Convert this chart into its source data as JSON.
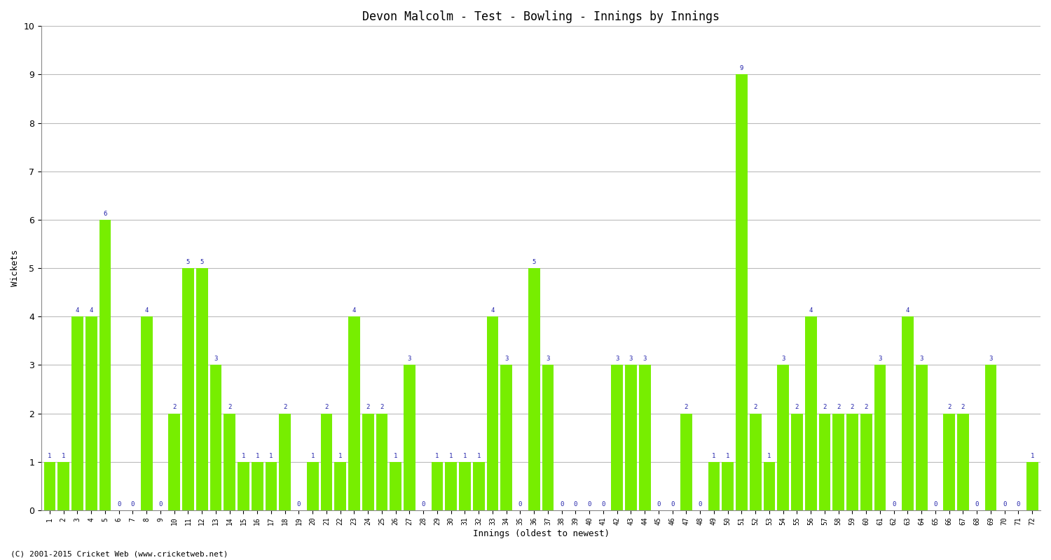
{
  "title": "Devon Malcolm - Test - Bowling - Innings by Innings",
  "xlabel": "Innings (oldest to newest)",
  "ylabel": "Wickets",
  "bar_color": "#77ee00",
  "label_color": "#2222aa",
  "background_color": "#ffffff",
  "grid_color": "#bbbbbb",
  "ylim": [
    0,
    10
  ],
  "yticks": [
    0,
    1,
    2,
    3,
    4,
    5,
    6,
    7,
    8,
    9,
    10
  ],
  "copyright": "(C) 2001-2015 Cricket Web (www.cricketweb.net)",
  "categories": [
    "1",
    "2",
    "3",
    "4",
    "5",
    "6",
    "7",
    "8",
    "9",
    "10",
    "11",
    "12",
    "13",
    "14",
    "15",
    "16",
    "17",
    "18",
    "19",
    "20",
    "21",
    "22",
    "23",
    "24",
    "25",
    "26",
    "27",
    "28",
    "29",
    "30",
    "31",
    "32",
    "33",
    "34",
    "35",
    "36",
    "37",
    "38",
    "39",
    "40",
    "41",
    "42",
    "43",
    "44",
    "45",
    "46",
    "47",
    "48",
    "49",
    "50",
    "51",
    "52",
    "53",
    "54",
    "55",
    "56",
    "57",
    "58",
    "59",
    "60",
    "61",
    "62",
    "63",
    "64",
    "65",
    "66",
    "67",
    "68",
    "69",
    "70",
    "71",
    "72"
  ],
  "values": [
    1,
    1,
    4,
    4,
    6,
    0,
    0,
    4,
    0,
    2,
    5,
    5,
    3,
    2,
    1,
    1,
    1,
    2,
    0,
    1,
    2,
    1,
    4,
    2,
    2,
    1,
    3,
    0,
    1,
    1,
    1,
    1,
    4,
    3,
    0,
    5,
    3,
    0,
    0,
    0,
    0,
    3,
    3,
    3,
    0,
    0,
    2,
    0,
    1,
    1,
    9,
    2,
    1,
    3,
    2,
    4,
    2,
    2,
    2,
    2,
    3,
    0,
    4,
    3,
    0,
    2,
    2,
    0,
    3,
    0,
    0,
    1
  ]
}
